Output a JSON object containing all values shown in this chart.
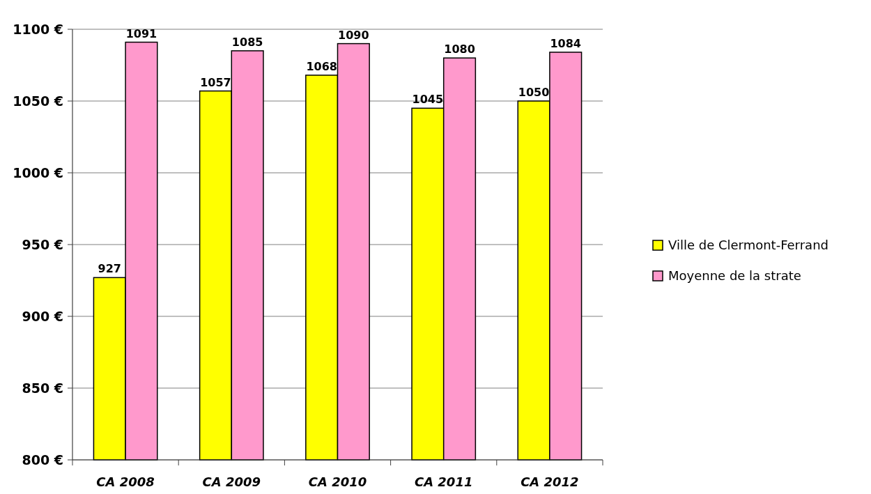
{
  "chart_data": {
    "type": "bar",
    "categories": [
      "CA 2008",
      "CA 2009",
      "CA 2010",
      "CA 2011",
      "CA 2012"
    ],
    "series": [
      {
        "name": "Ville de Clermont-Ferrand",
        "color": "#ffff00",
        "values": [
          927,
          1057,
          1068,
          1045,
          1050
        ]
      },
      {
        "name": "Moyenne de la strate",
        "color": "#ff99cc",
        "values": [
          1091,
          1085,
          1090,
          1080,
          1084
        ]
      }
    ],
    "ylim": [
      800,
      1100
    ],
    "yticks": [
      {
        "value": 800,
        "label": "800 €"
      },
      {
        "value": 850,
        "label": "850 €"
      },
      {
        "value": 900,
        "label": "900 €"
      },
      {
        "value": 950,
        "label": "950 €"
      },
      {
        "value": 1000,
        "label": "1000 €"
      },
      {
        "value": 1050,
        "label": "1050 €"
      },
      {
        "value": 1100,
        "label": "1100 €"
      }
    ],
    "grid": "y",
    "legend": "right",
    "data_labels": true
  }
}
